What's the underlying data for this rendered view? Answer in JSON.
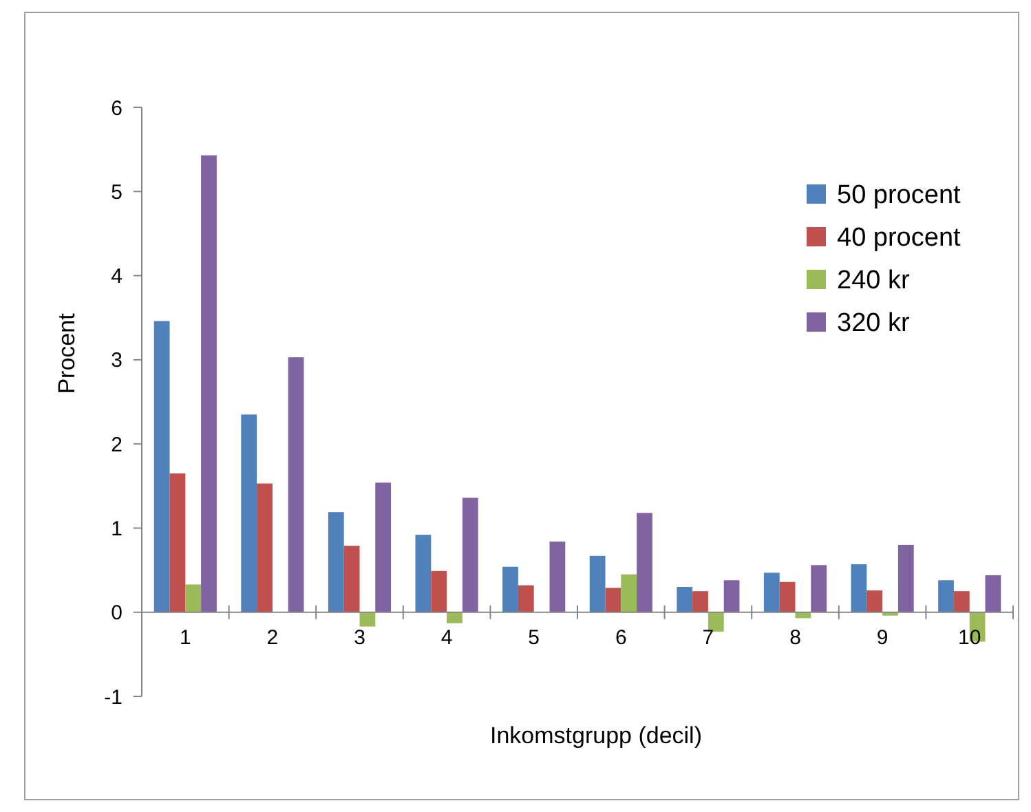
{
  "chart_data": {
    "type": "bar",
    "xlabel": "Inkomstgrupp (decil)",
    "ylabel": "Procent",
    "categories": [
      "1",
      "2",
      "3",
      "4",
      "5",
      "6",
      "7",
      "8",
      "9",
      "10"
    ],
    "series": [
      {
        "name": "50 procent",
        "color": "#4f81bd",
        "values": [
          3.46,
          2.35,
          1.19,
          0.92,
          0.54,
          0.67,
          0.3,
          0.47,
          0.57,
          0.38
        ]
      },
      {
        "name": "40 procent",
        "color": "#c0504d",
        "values": [
          1.65,
          1.53,
          0.79,
          0.49,
          0.32,
          0.29,
          0.25,
          0.36,
          0.26,
          0.25
        ]
      },
      {
        "name": "240 kr",
        "color": "#9bbb59",
        "values": [
          0.33,
          0,
          -0.17,
          -0.13,
          0,
          0.45,
          -0.23,
          -0.07,
          -0.04,
          -0.35
        ]
      },
      {
        "name": "320 kr",
        "color": "#8064a2",
        "values": [
          5.43,
          3.03,
          1.54,
          1.36,
          0.84,
          1.18,
          0.38,
          0.56,
          0.8,
          0.44
        ]
      }
    ],
    "ylim": [
      -1,
      6
    ],
    "yticks": [
      -1,
      0,
      1,
      2,
      3,
      4,
      5,
      6
    ],
    "grid": false,
    "legend": "top right"
  }
}
